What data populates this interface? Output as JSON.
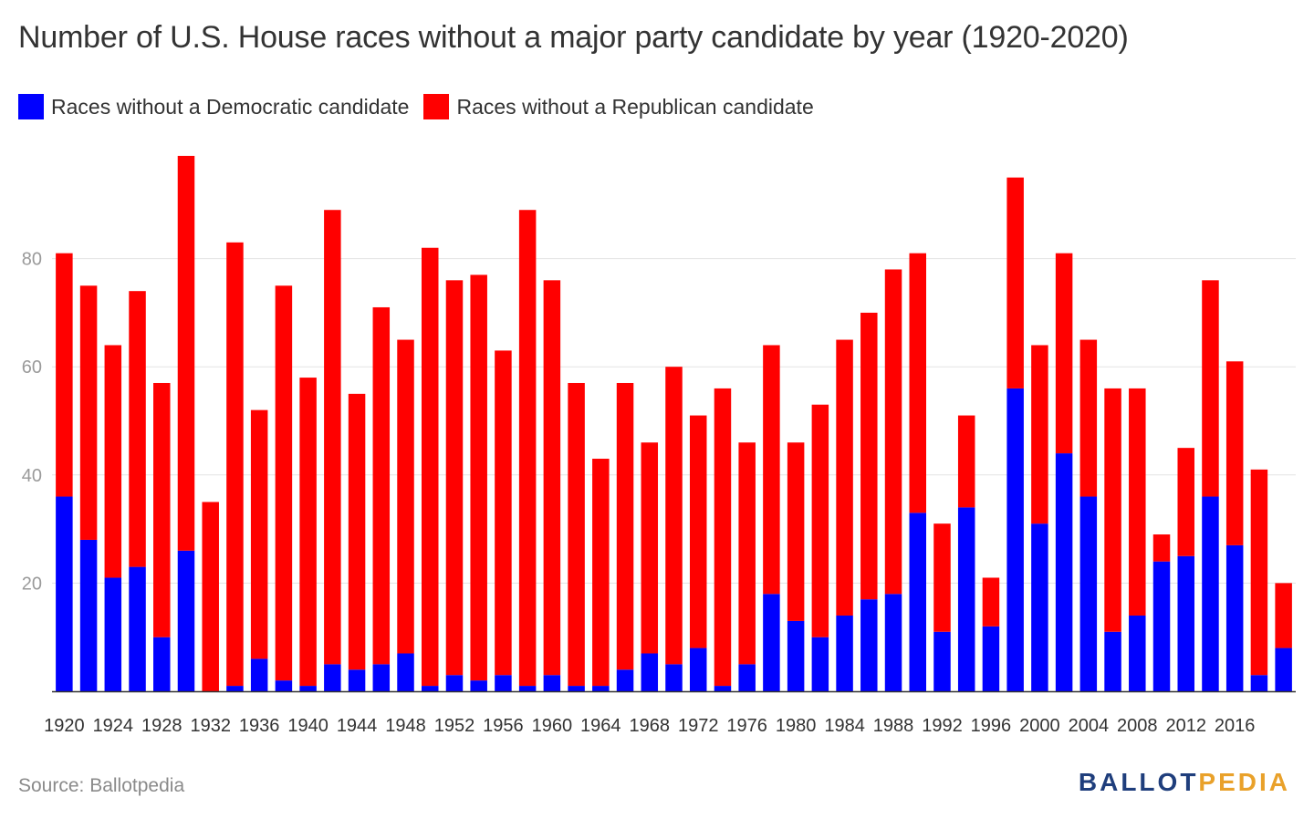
{
  "title": "Number of U.S. House races without a major party candidate by year (1920-2020)",
  "legend": {
    "dem": "Races without a Democratic candidate",
    "rep": "Races without a Republican candidate"
  },
  "colors": {
    "dem": "#0000ff",
    "rep": "#ff0000",
    "grid": "#e3e3e3",
    "axis": "#333333",
    "tick": "#9a9a9a"
  },
  "source": "Source: Ballotpedia",
  "logo": {
    "part1": "BALLOT",
    "part2": "PEDIA"
  },
  "chart_data": {
    "type": "bar",
    "stacked": true,
    "title": "Number of U.S. House races without a major party candidate by year (1920-2020)",
    "categories": [
      "1920",
      "1922",
      "1924",
      "1926",
      "1928",
      "1930",
      "1932",
      "1934",
      "1936",
      "1938",
      "1940",
      "1942",
      "1944",
      "1946",
      "1948",
      "1950",
      "1952",
      "1954",
      "1956",
      "1958",
      "1960",
      "1962",
      "1964",
      "1966",
      "1968",
      "1970",
      "1972",
      "1974",
      "1976",
      "1978",
      "1980",
      "1982",
      "1984",
      "1986",
      "1988",
      "1990",
      "1992",
      "1994",
      "1996",
      "1998",
      "2000",
      "2002",
      "2004",
      "2006",
      "2008",
      "2010",
      "2012",
      "2014",
      "2016",
      "2018",
      "2020"
    ],
    "x_tick_labels": [
      "1920",
      "1924",
      "1928",
      "1932",
      "1936",
      "1940",
      "1944",
      "1948",
      "1952",
      "1956",
      "1960",
      "1964",
      "1968",
      "1972",
      "1976",
      "1980",
      "1984",
      "1988",
      "1992",
      "1996",
      "2000",
      "2004",
      "2008",
      "2012",
      "2016"
    ],
    "series": [
      {
        "name": "Races without a Democratic candidate",
        "color": "#0000ff",
        "values": [
          36,
          28,
          21,
          23,
          10,
          26,
          0,
          1,
          6,
          2,
          1,
          5,
          4,
          5,
          7,
          1,
          3,
          2,
          3,
          1,
          3,
          1,
          1,
          4,
          7,
          5,
          8,
          1,
          5,
          18,
          13,
          10,
          14,
          17,
          18,
          33,
          11,
          34,
          12,
          56,
          31,
          44,
          36,
          11,
          14,
          24,
          25,
          36,
          27,
          3,
          8
        ]
      },
      {
        "name": "Races without a Republican candidate",
        "color": "#ff0000",
        "values": [
          45,
          47,
          43,
          51,
          47,
          73,
          35,
          82,
          46,
          73,
          57,
          84,
          51,
          66,
          58,
          81,
          73,
          75,
          60,
          88,
          73,
          56,
          42,
          53,
          39,
          55,
          43,
          55,
          41,
          46,
          33,
          43,
          51,
          53,
          60,
          48,
          20,
          17,
          9,
          39,
          33,
          37,
          29,
          45,
          42,
          5,
          20,
          40,
          34,
          38,
          12
        ]
      }
    ],
    "ylim": [
      0,
      100
    ],
    "yticks": [
      20,
      40,
      60,
      80
    ],
    "grid": true,
    "legend_position": "top-left"
  }
}
